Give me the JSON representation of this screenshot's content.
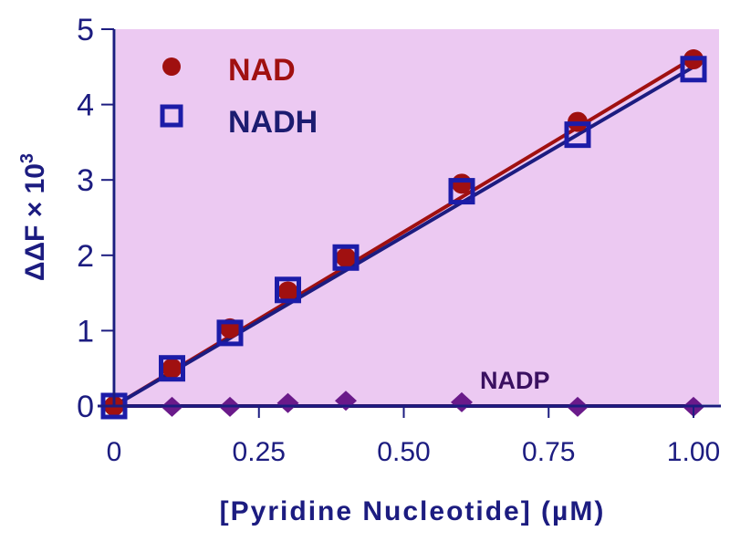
{
  "chart_data": {
    "type": "scatter",
    "title": "",
    "xlabel": "[Pyridine Nucleotide] (µM)",
    "ylabel": "ΔΔF × 10",
    "ylabel_superscript": "3",
    "xlim": [
      0,
      1.0
    ],
    "ylim": [
      0,
      5
    ],
    "x_ticks": [
      0,
      0.25,
      0.5,
      0.75,
      1.0
    ],
    "x_tick_labels": [
      "0",
      "0.25",
      "0.50",
      "0.75",
      "1.00"
    ],
    "y_ticks": [
      0,
      1,
      2,
      3,
      4,
      5
    ],
    "y_tick_labels": [
      "0",
      "1",
      "2",
      "3",
      "4",
      "5"
    ],
    "grid": false,
    "legend_position": "top-left",
    "plot_background": "#ecc9f2",
    "axis_color": "#1c1c80",
    "series": [
      {
        "name": "NAD",
        "marker": "filled-circle",
        "color": "#a01010",
        "x": [
          0,
          0.1,
          0.2,
          0.3,
          0.4,
          0.6,
          0.8,
          1.0
        ],
        "y": [
          0,
          0.5,
          1.03,
          1.52,
          1.97,
          2.95,
          3.77,
          4.6
        ],
        "fit": [
          0,
          4.62
        ]
      },
      {
        "name": "NADH",
        "marker": "open-square",
        "color": "#1c1ca8",
        "x": [
          0,
          0.1,
          0.2,
          0.3,
          0.4,
          0.6,
          0.8,
          1.0
        ],
        "y": [
          0,
          0.5,
          0.97,
          1.54,
          1.97,
          2.85,
          3.6,
          4.47
        ],
        "fit": [
          0,
          4.5
        ]
      },
      {
        "name": "NADP",
        "marker": "filled-diamond",
        "color": "#6a1a8a",
        "x": [
          0,
          0.1,
          0.2,
          0.3,
          0.4,
          0.6,
          0.8,
          1.0
        ],
        "y": [
          0,
          -0.01,
          -0.01,
          0.04,
          0.07,
          0.05,
          -0.01,
          -0.01
        ],
        "fit": [
          0,
          0
        ]
      }
    ]
  }
}
